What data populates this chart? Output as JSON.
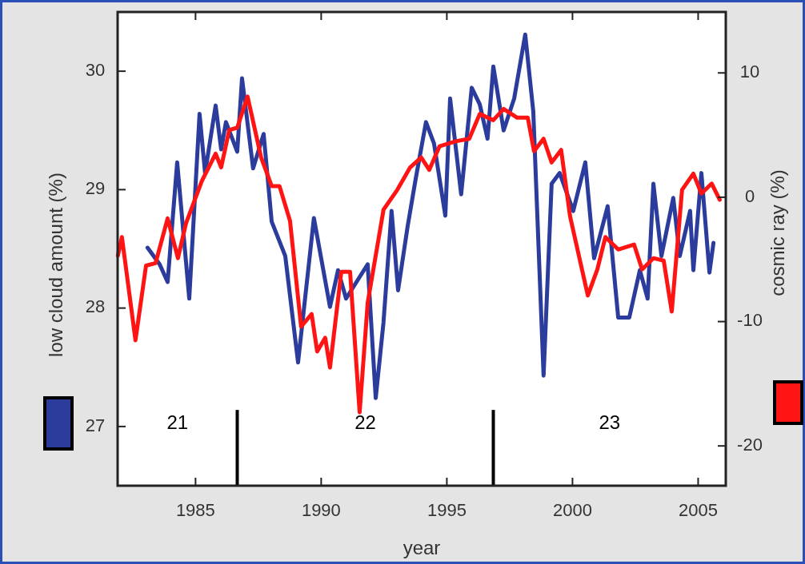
{
  "chart_data": {
    "type": "line",
    "xlabel": "year",
    "ylabel": "low cloud amount (%)",
    "y2label": "cosmic ray (%)",
    "xlim": [
      1981.9,
      2006.1
    ],
    "xticks": [
      1985,
      1990,
      1995,
      2000,
      2005
    ],
    "ylim": [
      26.5,
      30.5
    ],
    "yticks": [
      27,
      28,
      29,
      30
    ],
    "y2lim": [
      -23.2,
      14.9
    ],
    "y2ticks": [
      -20,
      -10,
      0,
      10
    ],
    "series": [
      {
        "color": "#2b3c9c",
        "x": [
          1983.09,
          1983.57,
          1983.89,
          1984.27,
          1984.75,
          1985.16,
          1985.38,
          1985.8,
          1986.02,
          1986.21,
          1986.66,
          1986.85,
          1987.29,
          1987.71,
          1988.03,
          1988.57,
          1989.08,
          1989.71,
          1990.35,
          1990.67,
          1990.99,
          1991.85,
          1992.17,
          1992.48,
          1992.8,
          1993.06,
          1993.44,
          1993.76,
          1994.17,
          1994.49,
          1994.94,
          1995.13,
          1995.57,
          1995.99,
          1996.31,
          1996.62,
          1996.85,
          1997.26,
          1997.68,
          1998.12,
          1998.44,
          1998.85,
          1999.17,
          1999.49,
          2000.03,
          2000.51,
          2000.86,
          2001.4,
          2001.82,
          2002.26,
          2002.45,
          2002.68,
          2002.99,
          2003.22,
          2003.54,
          2004.01,
          2004.27,
          2004.68,
          2004.81,
          2005.13,
          2005.45,
          2005.61
        ],
        "values": [
          28.51,
          28.37,
          28.22,
          29.23,
          28.08,
          29.64,
          29.14,
          29.71,
          29.34,
          29.57,
          29.32,
          29.94,
          29.18,
          29.47,
          28.73,
          28.44,
          27.54,
          28.76,
          28.01,
          28.32,
          28.08,
          28.37,
          27.24,
          27.88,
          28.82,
          28.15,
          28.69,
          29.09,
          29.57,
          29.39,
          28.78,
          29.77,
          28.96,
          29.86,
          29.72,
          29.43,
          30.04,
          29.5,
          29.77,
          30.31,
          29.66,
          27.43,
          29.05,
          29.14,
          28.82,
          29.23,
          28.42,
          28.86,
          27.92,
          27.92,
          28.1,
          28.32,
          28.08,
          29.05,
          28.44,
          28.93,
          28.44,
          28.82,
          28.32,
          29.14,
          28.3,
          28.55
        ]
      },
      {
        "color": "#ff1414",
        "axis": "y2",
        "x": [
          1981.91,
          1982.07,
          1982.61,
          1983.03,
          1983.41,
          1983.89,
          1984.3,
          1984.62,
          1985.25,
          1985.8,
          1986.02,
          1986.34,
          1986.66,
          1987.07,
          1987.61,
          1988.03,
          1988.34,
          1988.76,
          1989.2,
          1989.62,
          1989.84,
          1990.16,
          1990.35,
          1990.8,
          1991.15,
          1991.53,
          1991.85,
          1992.48,
          1993.03,
          1993.54,
          1993.98,
          1994.3,
          1994.71,
          1995.35,
          1995.89,
          1996.31,
          1996.85,
          1997.26,
          1997.8,
          1998.22,
          1998.47,
          1998.85,
          1999.17,
          1999.55,
          1999.9,
          2000.61,
          2000.99,
          2001.31,
          2001.82,
          2002.45,
          2002.77,
          2003.22,
          2003.63,
          2003.95,
          2004.36,
          2004.81,
          2005.13,
          2005.54,
          2005.86
        ],
        "values": [
          -4.7,
          -3.2,
          -11.5,
          -5.5,
          -5.3,
          -1.7,
          -4.9,
          -2.1,
          1.3,
          3.5,
          2.4,
          5.4,
          5.6,
          8.1,
          3.2,
          0.9,
          0.9,
          -1.9,
          -10.4,
          -9.4,
          -12.4,
          -11.3,
          -13.7,
          -6.0,
          -6.0,
          -17.3,
          -8.5,
          -1.0,
          0.6,
          2.4,
          3.2,
          2.2,
          4.1,
          4.5,
          4.7,
          6.7,
          6.2,
          7.1,
          6.4,
          6.4,
          3.7,
          4.7,
          2.8,
          3.8,
          -1.5,
          -7.9,
          -5.8,
          -3.2,
          -4.2,
          -3.8,
          -5.8,
          -4.9,
          -5.1,
          -9.2,
          0.6,
          1.9,
          0.3,
          1.1,
          -0.2
        ]
      }
    ],
    "ref_lines": [
      {
        "axis": "x",
        "value": 1986.66,
        "color": "#000000"
      },
      {
        "axis": "x",
        "value": 1996.85,
        "color": "#000000"
      }
    ],
    "annotations": [
      "21",
      "22",
      "23"
    ]
  }
}
